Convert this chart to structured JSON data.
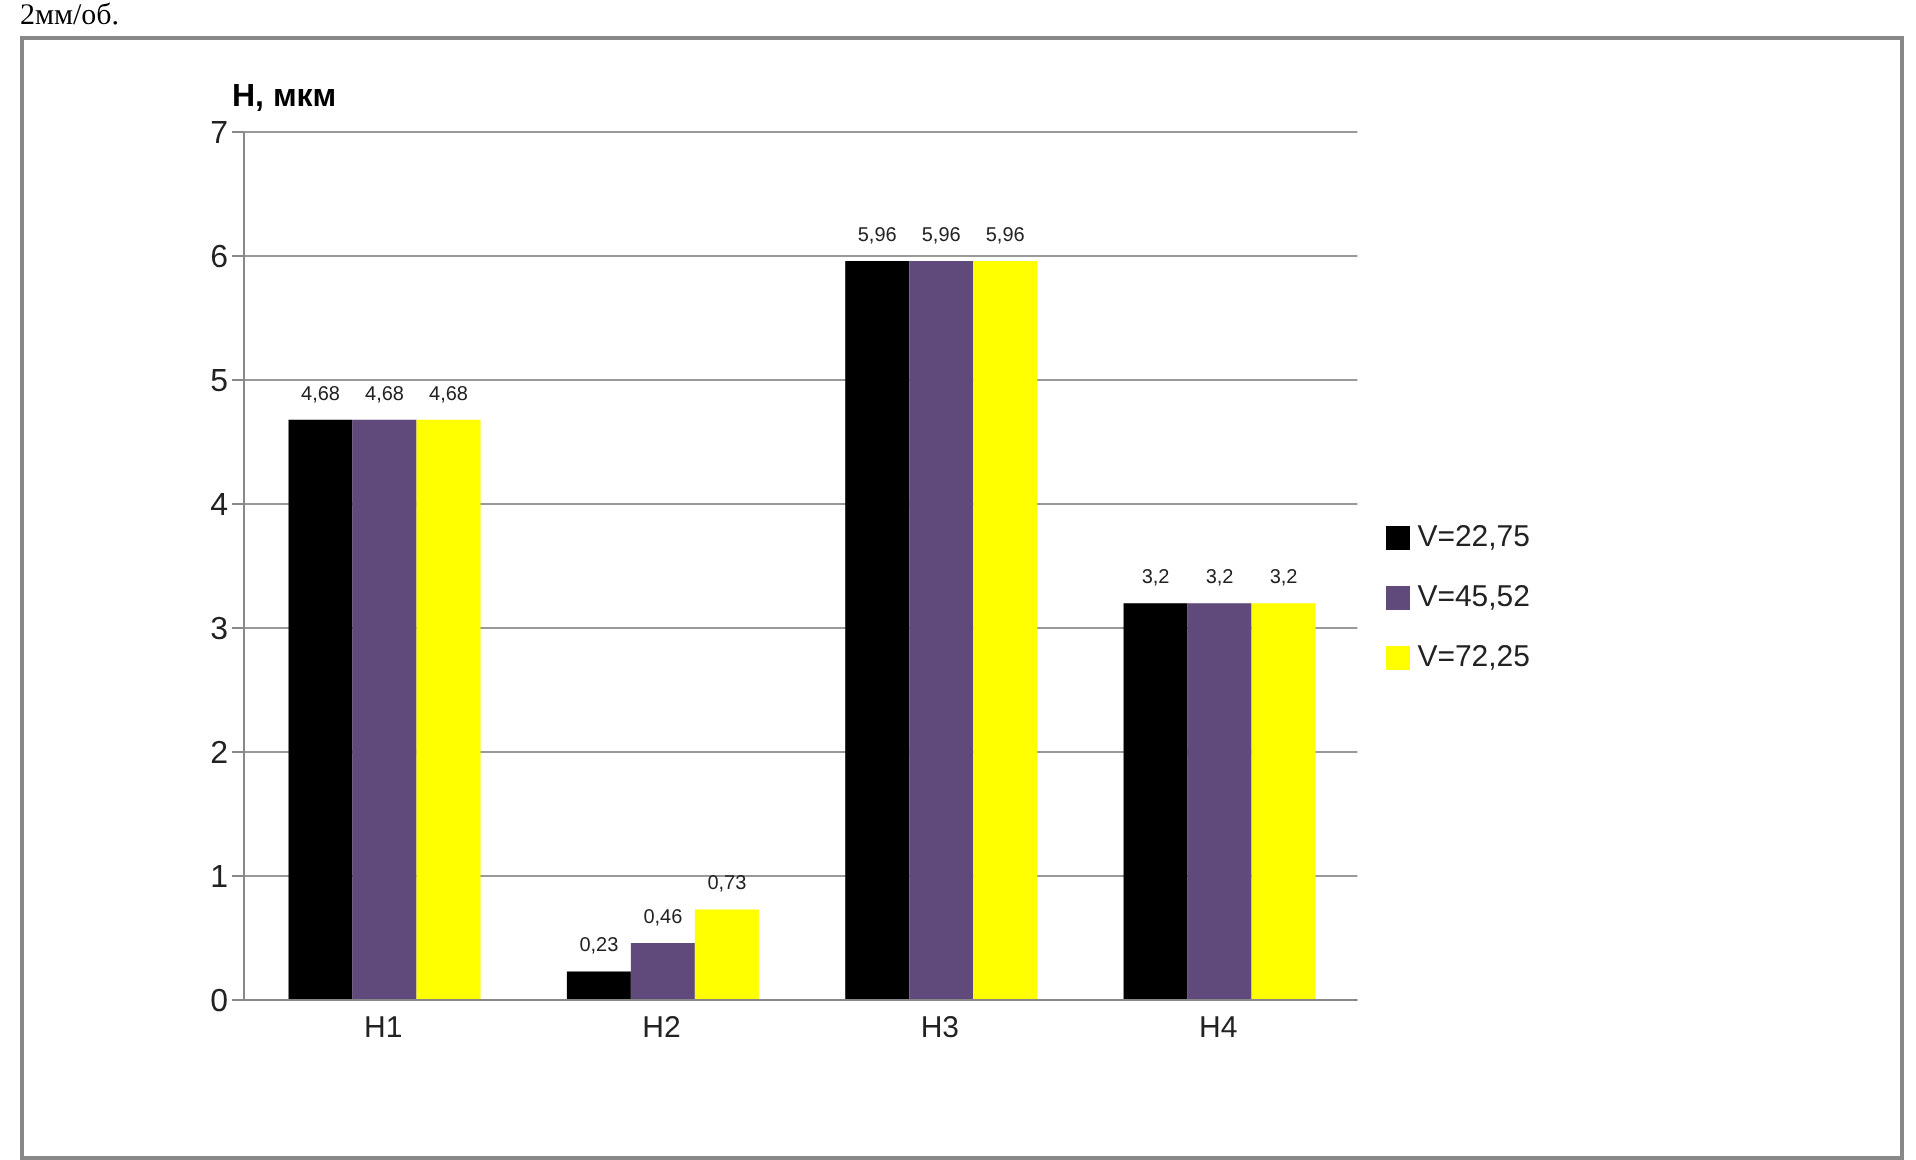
{
  "chart_data": {
    "type": "bar",
    "ylabel": "H, мкм",
    "annotations": [
      "2мм/об."
    ],
    "categories": [
      "H1",
      "H2",
      "H3",
      "H4"
    ],
    "series": [
      {
        "name": "V=22,75",
        "color": "#000000",
        "values": [
          4.68,
          0.23,
          5.96,
          3.2
        ],
        "value_labels": [
          "4,68",
          "0,23",
          "5,96",
          "3,2"
        ]
      },
      {
        "name": "V=45,52",
        "color": "#604a7b",
        "values": [
          4.68,
          0.46,
          5.96,
          3.2
        ],
        "value_labels": [
          "4,68",
          "0,46",
          "5,96",
          "3,2"
        ]
      },
      {
        "name": "V=72,25",
        "color": "#ffff00",
        "values": [
          4.68,
          0.73,
          5.96,
          3.2
        ],
        "value_labels": [
          "4,68",
          "0,73",
          "5,96",
          "3,2"
        ]
      }
    ],
    "ylim": [
      0,
      7
    ],
    "yticks": [
      0,
      1,
      2,
      3,
      4,
      5,
      6,
      7
    ],
    "grid": "y",
    "legend": "right"
  }
}
